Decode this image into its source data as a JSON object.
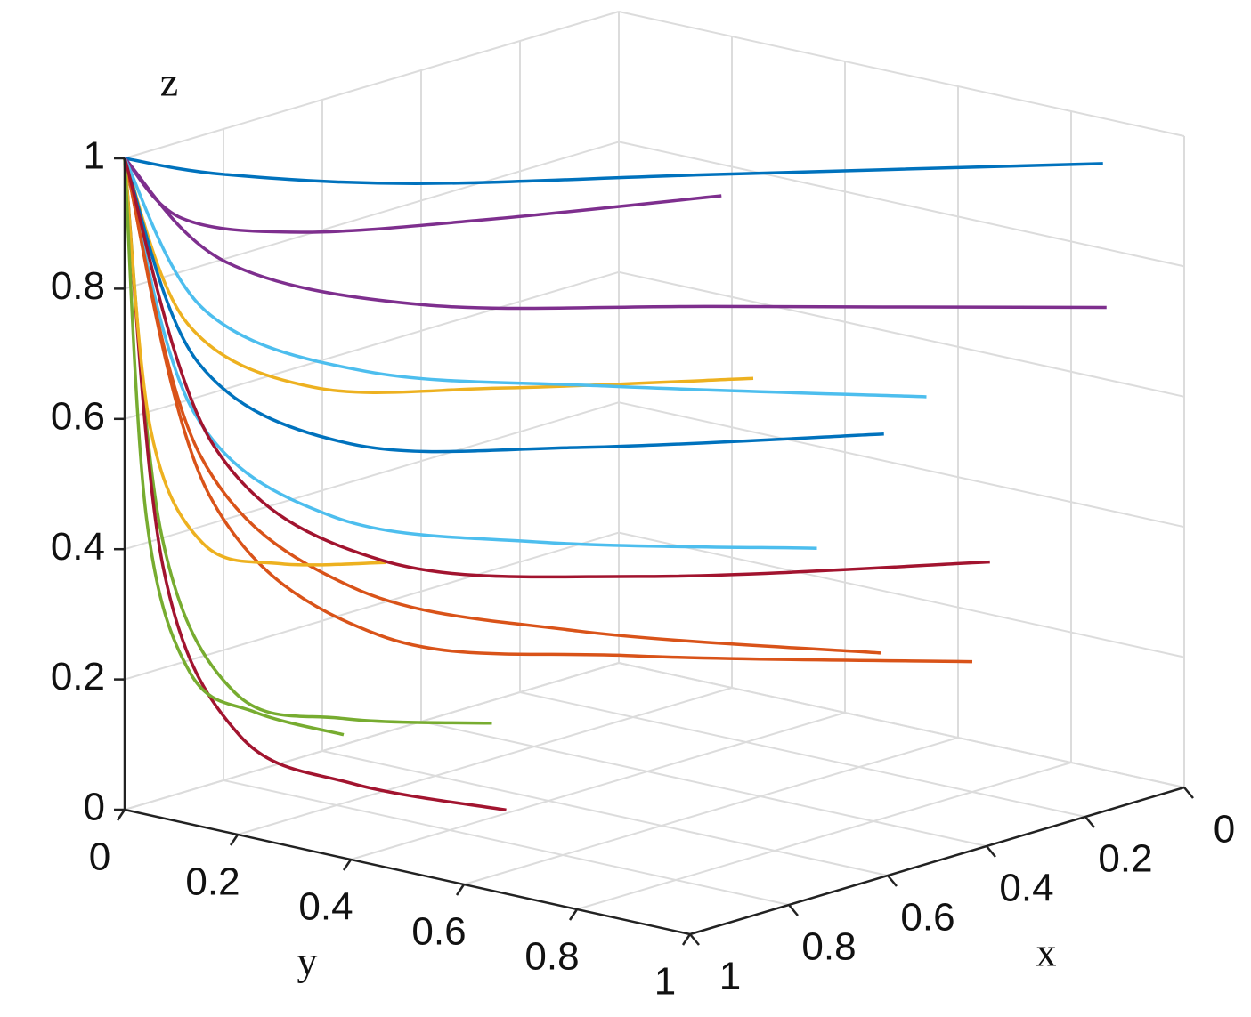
{
  "chart_data": {
    "type": "line3d",
    "xlabel": "x",
    "ylabel": "y",
    "zlabel": "z",
    "xlim": [
      0,
      1
    ],
    "ylim": [
      0,
      1
    ],
    "zlim": [
      0,
      1
    ],
    "xticks": [
      0,
      0.2,
      0.4,
      0.6,
      0.8,
      1
    ],
    "yticks": [
      0,
      0.2,
      0.4,
      0.6,
      0.8,
      1
    ],
    "zticks": [
      0,
      0.2,
      0.4,
      0.6,
      0.8,
      1
    ],
    "grid": true,
    "series": [
      {
        "color": "#0072BD",
        "x": [
          1,
          0.9,
          0.72,
          0.43,
          0.05
        ],
        "y": [
          0,
          0.09,
          0.27,
          0.54,
          0.9
        ],
        "z": [
          1,
          0.97,
          0.95,
          0.95,
          0.95
        ]
      },
      {
        "color": "#D95319",
        "x": [
          1,
          0.92,
          0.76,
          0.52,
          0.2
        ],
        "y": [
          0,
          0.08,
          0.24,
          0.48,
          0.8
        ],
        "z": [
          1,
          0.48,
          0.26,
          0.22,
          0.2
        ]
      },
      {
        "color": "#EDB120",
        "x": [
          1,
          0.93,
          0.79,
          0.58,
          0.3
        ],
        "y": [
          0,
          0.05,
          0.15,
          0.3,
          0.5
        ],
        "z": [
          1,
          0.74,
          0.63,
          0.61,
          0.6
        ]
      },
      {
        "color": "#7E2F8E",
        "x": [
          1,
          0.91,
          0.73,
          0.46,
          0.1
        ],
        "y": [
          0,
          0.1,
          0.29,
          0.57,
          0.95
        ],
        "z": [
          1,
          0.84,
          0.77,
          0.76,
          0.75
        ]
      },
      {
        "color": "#77AC30",
        "x": [
          1,
          0.96,
          0.88,
          0.76,
          0.6
        ],
        "y": [
          0,
          0.03,
          0.09,
          0.18,
          0.3
        ],
        "z": [
          1,
          0.42,
          0.17,
          0.12,
          0.1
        ]
      },
      {
        "color": "#4DBEEE",
        "x": [
          1,
          0.94,
          0.82,
          0.64,
          0.4
        ],
        "y": [
          0,
          0.07,
          0.21,
          0.42,
          0.7
        ],
        "z": [
          1,
          0.61,
          0.45,
          0.41,
          0.4
        ]
      },
      {
        "color": "#A2142F",
        "x": [
          1,
          0.98,
          0.94,
          0.88,
          0.8
        ],
        "y": [
          0,
          0.05,
          0.15,
          0.3,
          0.5
        ],
        "z": [
          1,
          0.38,
          0.13,
          0.07,
          0.05
        ]
      },
      {
        "color": "#0072BD",
        "x": [
          1,
          0.92,
          0.75,
          0.49,
          0.15
        ],
        "y": [
          0,
          0.06,
          0.18,
          0.36,
          0.6
        ],
        "z": [
          1,
          0.68,
          0.54,
          0.51,
          0.5
        ]
      },
      {
        "color": "#D95319",
        "x": [
          1,
          0.95,
          0.85,
          0.7,
          0.5
        ],
        "y": [
          0,
          0.09,
          0.27,
          0.54,
          0.9
        ],
        "z": [
          1,
          0.55,
          0.36,
          0.31,
          0.3
        ]
      },
      {
        "color": "#EDB120",
        "x": [
          1,
          0.97,
          0.91,
          0.82,
          0.7
        ],
        "y": [
          0,
          0.02,
          0.06,
          0.12,
          0.2
        ],
        "z": [
          1,
          0.58,
          0.4,
          0.36,
          0.35
        ]
      },
      {
        "color": "#7E2F8E",
        "x": [
          1,
          0.93,
          0.78,
          0.55,
          0.25
        ],
        "y": [
          0,
          0.04,
          0.12,
          0.24,
          0.4
        ],
        "z": [
          1,
          0.9,
          0.86,
          0.85,
          0.85
        ]
      },
      {
        "color": "#77AC30",
        "x": [
          1,
          0.99,
          0.97,
          0.94,
          0.9
        ],
        "y": [
          0,
          0.03,
          0.09,
          0.18,
          0.3
        ],
        "z": [
          1,
          0.45,
          0.22,
          0.17,
          0.15
        ]
      },
      {
        "color": "#4DBEEE",
        "x": [
          1,
          0.94,
          0.81,
          0.61,
          0.35
        ],
        "y": [
          0,
          0.09,
          0.26,
          0.51,
          0.85
        ],
        "z": [
          1,
          0.77,
          0.68,
          0.66,
          0.65
        ]
      },
      {
        "color": "#A2142F",
        "x": [
          1,
          0.9,
          0.72,
          0.43,
          0.05
        ],
        "y": [
          0,
          0.07,
          0.21,
          0.42,
          0.7
        ],
        "z": [
          1,
          0.55,
          0.36,
          0.31,
          0.3
        ]
      }
    ]
  }
}
